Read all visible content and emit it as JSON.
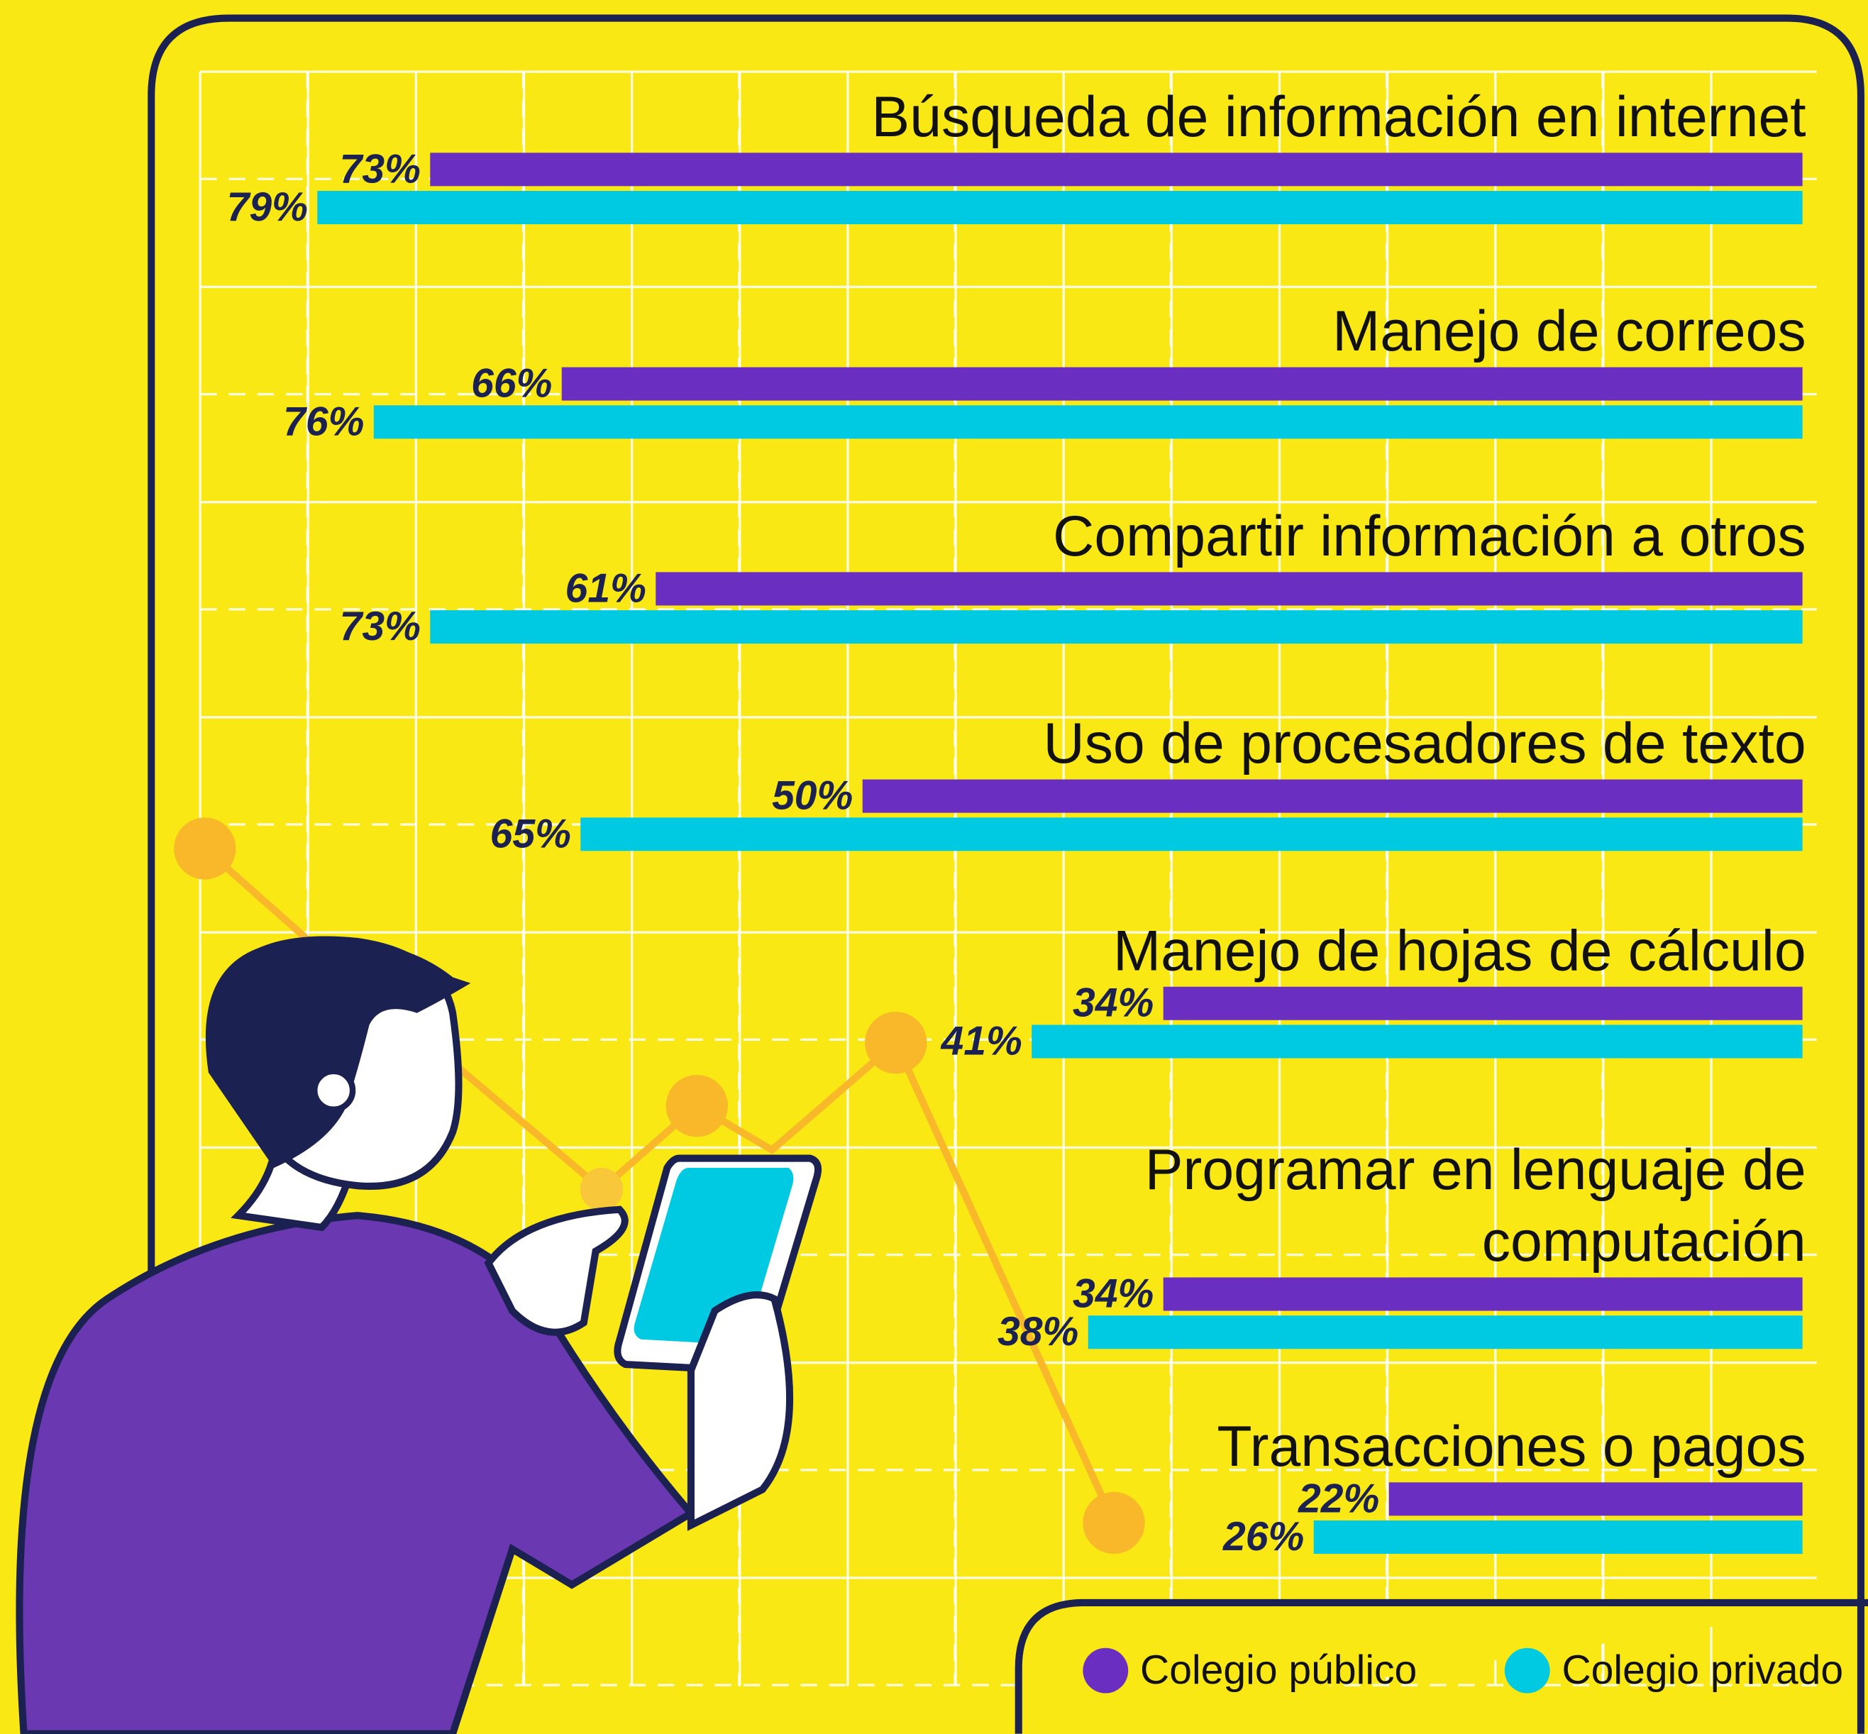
{
  "chart_data": {
    "type": "bar",
    "orientation": "horizontal",
    "categories": [
      "Búsqueda de información en internet",
      "Manejo de correos",
      "Compartir información a otros",
      "Uso de procesadores de texto",
      "Manejo de hojas de cálculo",
      "Programar en lenguaje de computación",
      "Transacciones o pagos"
    ],
    "series": [
      {
        "name": "Colegio público",
        "color": "#6a2fc0",
        "values": [
          73,
          66,
          61,
          50,
          34,
          34,
          22
        ],
        "value_labels": [
          "73%",
          "66%",
          "61%",
          "50%",
          "34%",
          "34%",
          "22%"
        ]
      },
      {
        "name": "Colegio privado",
        "color": "#00c9e2",
        "values": [
          79,
          76,
          73,
          65,
          41,
          38,
          26
        ],
        "value_labels": [
          "79%",
          "76%",
          "73%",
          "65%",
          "41%",
          "38%",
          "26%"
        ]
      }
    ],
    "xlim": [
      0,
      100
    ]
  }
}
